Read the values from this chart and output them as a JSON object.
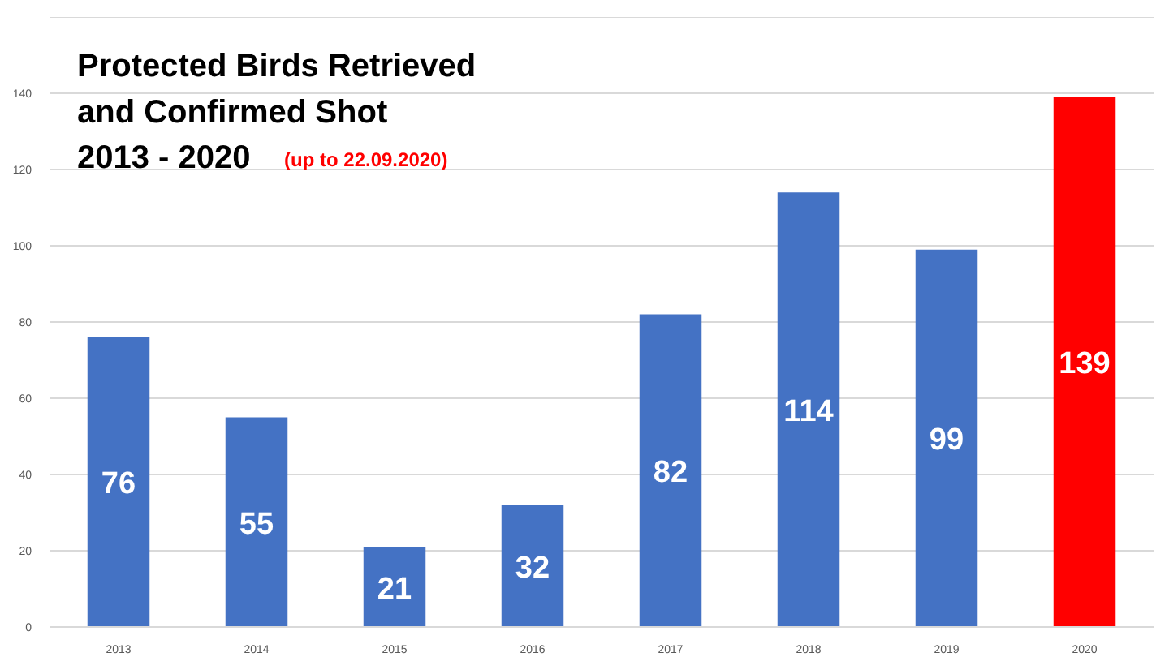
{
  "chart_data": {
    "type": "bar",
    "title": "Protected Birds Retrieved\nand Confirmed Shot\n2013 - 2020",
    "subtitle": "(up to 22.09.2020)",
    "categories": [
      "2013",
      "2014",
      "2015",
      "2016",
      "2017",
      "2018",
      "2019",
      "2020"
    ],
    "values": [
      76,
      55,
      21,
      32,
      82,
      114,
      99,
      139
    ],
    "colors": [
      "#4472c4",
      "#4472c4",
      "#4472c4",
      "#4472c4",
      "#4472c4",
      "#4472c4",
      "#4472c4",
      "#ff0000"
    ],
    "data_labels": true,
    "ylim": [
      0,
      160
    ],
    "yticks": [
      0,
      20,
      40,
      60,
      80,
      100,
      120,
      140
    ],
    "grid": "y"
  }
}
